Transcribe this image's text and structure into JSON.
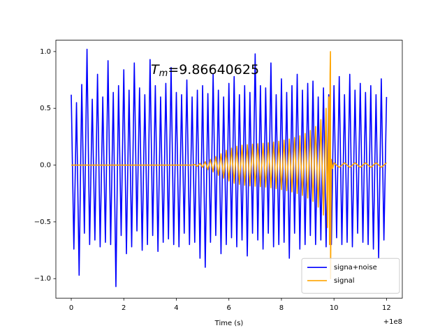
{
  "chart_data": {
    "type": "line",
    "xlabel": "Time (s)",
    "x_offset_label": "+1e8",
    "annotation": {
      "symbol": "T",
      "subscript": "m",
      "text": "=9.86640625"
    },
    "xlim": [
      -0.585,
      12.6
    ],
    "ylim": [
      -1.172,
      1.1
    ],
    "xticks": [
      0,
      2,
      4,
      6,
      8,
      10,
      12
    ],
    "yticks": [
      {
        "value": -1.0,
        "label": "−1.0"
      },
      {
        "value": -0.5,
        "label": "−0.5"
      },
      {
        "value": 0.0,
        "label": "0.0"
      },
      {
        "value": 0.5,
        "label": "0.5"
      },
      {
        "value": 1.0,
        "label": "1.0"
      }
    ],
    "legend": "lower right",
    "series": [
      {
        "name": "signa+noise",
        "color": "#0000ff",
        "x": [
          0,
          0.1,
          0.2,
          0.3,
          0.4,
          0.5,
          0.6,
          0.7,
          0.8,
          0.9,
          1,
          1.1,
          1.2,
          1.3,
          1.4,
          1.5,
          1.6,
          1.7,
          1.8,
          1.9,
          2,
          2.1,
          2.2,
          2.3,
          2.4,
          2.5,
          2.6,
          2.7,
          2.8,
          2.9,
          3,
          3.1,
          3.2,
          3.3,
          3.4,
          3.5,
          3.6,
          3.7,
          3.8,
          3.9,
          4,
          4.1,
          4.2,
          4.3,
          4.4,
          4.5,
          4.6,
          4.7,
          4.8,
          4.9,
          5,
          5.1,
          5.2,
          5.3,
          5.4,
          5.5,
          5.6,
          5.7,
          5.8,
          5.9,
          6,
          6.1,
          6.2,
          6.3,
          6.4,
          6.5,
          6.6,
          6.7,
          6.8,
          6.9,
          7,
          7.1,
          7.2,
          7.3,
          7.4,
          7.5,
          7.6,
          7.7,
          7.8,
          7.9,
          8,
          8.1,
          8.2,
          8.3,
          8.4,
          8.5,
          8.6,
          8.7,
          8.8,
          8.9,
          9,
          9.1,
          9.2,
          9.3,
          9.4,
          9.5,
          9.6,
          9.7,
          9.8,
          9.9,
          10,
          10.1,
          10.2,
          10.3,
          10.4,
          10.5,
          10.6,
          10.7,
          10.8,
          10.9,
          11,
          11.1,
          11.2,
          11.3,
          11.4,
          11.5,
          11.6,
          11.7,
          11.8,
          11.9,
          12
        ],
        "values": [
          0.62,
          -0.74,
          0.55,
          -0.97,
          0.71,
          -0.6,
          1.02,
          -0.7,
          0.58,
          -0.66,
          0.8,
          -0.72,
          0.6,
          -0.68,
          0.92,
          -0.7,
          0.64,
          -1.07,
          0.7,
          -0.62,
          0.84,
          -0.78,
          0.66,
          -0.72,
          0.9,
          -0.58,
          0.68,
          -0.75,
          0.62,
          -0.7,
          0.93,
          -0.62,
          0.7,
          -0.76,
          0.6,
          -0.68,
          0.72,
          -0.65,
          0.86,
          -0.7,
          0.64,
          -0.72,
          0.62,
          -0.6,
          0.75,
          -0.7,
          0.6,
          -0.68,
          0.66,
          -0.82,
          0.7,
          -0.9,
          0.63,
          -0.68,
          0.8,
          -0.62,
          0.66,
          -0.78,
          0.6,
          -0.7,
          0.72,
          -0.64,
          0.78,
          -0.72,
          0.62,
          -0.66,
          0.7,
          -0.8,
          0.64,
          -0.6,
          0.98,
          -0.66,
          0.7,
          -0.74,
          0.68,
          -0.6,
          0.9,
          -0.72,
          0.62,
          -0.7,
          0.76,
          -0.68,
          0.64,
          -0.82,
          0.7,
          -0.6,
          0.8,
          -0.74,
          0.66,
          -0.7,
          0.72,
          -0.62,
          0.74,
          -0.7,
          0.6,
          -0.66,
          0.68,
          -0.72,
          0.62,
          -0.7,
          0.7,
          -0.64,
          0.78,
          -0.7,
          0.62,
          -0.68,
          0.8,
          -0.72,
          0.66,
          -0.6,
          0.72,
          -0.68,
          0.64,
          -0.7,
          0.7,
          -0.74,
          0.62,
          -0.82,
          0.76,
          -0.66,
          0.6
        ]
      },
      {
        "name": "signal",
        "color": "#ffa500",
        "x": [
          0,
          4.6,
          4.7,
          4.8,
          4.9,
          5,
          5.1,
          5.2,
          5.3,
          5.4,
          5.5,
          5.6,
          5.7,
          5.8,
          5.9,
          6,
          6.1,
          6.2,
          6.3,
          6.4,
          6.5,
          6.6,
          6.7,
          6.8,
          6.9,
          7,
          7.1,
          7.2,
          7.3,
          7.4,
          7.5,
          7.6,
          7.7,
          7.8,
          7.9,
          8,
          8.1,
          8.2,
          8.3,
          8.4,
          8.5,
          8.6,
          8.7,
          8.8,
          8.9,
          9,
          9.1,
          9.2,
          9.3,
          9.4,
          9.5,
          9.6,
          9.7,
          9.75,
          9.8,
          9.83,
          9.85,
          9.866,
          9.87,
          9.9,
          9.95,
          10,
          10.2,
          10.4,
          10.6,
          10.8,
          11,
          11.2,
          11.4,
          11.6,
          11.8,
          12
        ],
        "values": [
          0,
          0,
          0.005,
          -0.01,
          0.015,
          -0.02,
          0.03,
          -0.04,
          0.05,
          -0.06,
          0.075,
          -0.09,
          0.1,
          -0.115,
          0.13,
          -0.14,
          0.15,
          -0.16,
          0.165,
          -0.17,
          0.175,
          -0.178,
          0.18,
          -0.182,
          0.184,
          -0.186,
          0.188,
          -0.19,
          0.192,
          -0.194,
          0.197,
          -0.2,
          0.203,
          -0.207,
          0.21,
          -0.215,
          0.22,
          -0.225,
          0.23,
          -0.236,
          0.243,
          -0.25,
          0.258,
          -0.267,
          0.278,
          -0.29,
          0.305,
          -0.32,
          0.34,
          -0.37,
          0.4,
          -0.44,
          0.5,
          -0.55,
          0.6,
          -0.7,
          0.8,
          1.0,
          -1.0,
          0.05,
          -0.03,
          0.02,
          -0.02,
          0.02,
          -0.02,
          0.02,
          -0.02,
          0.02,
          -0.02,
          0.02,
          -0.02,
          0.02
        ]
      }
    ]
  }
}
